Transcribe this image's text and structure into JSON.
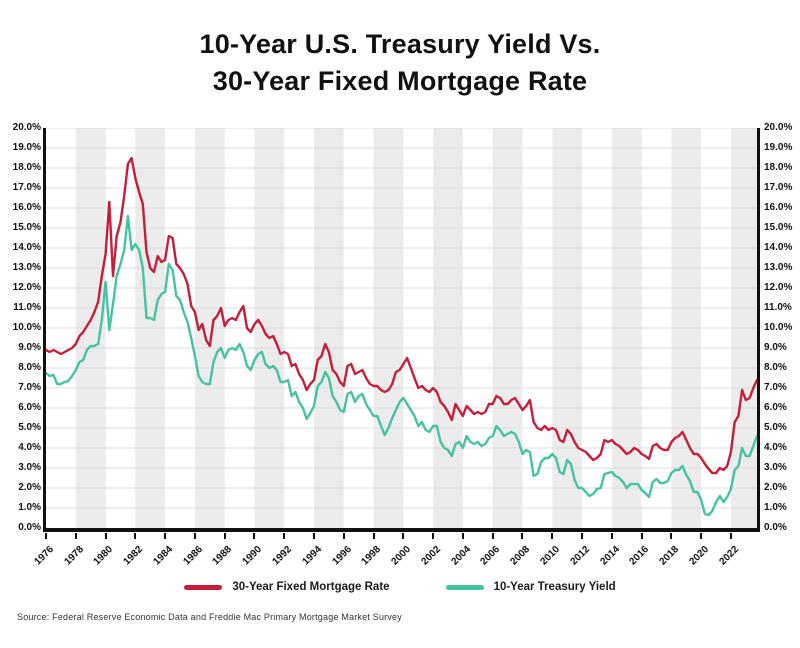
{
  "title": {
    "line1": "10-Year U.S. Treasury Yield Vs.",
    "line2": "30-Year Fixed Mortgage Rate"
  },
  "source": "Source: Federal Reserve Economic Data and Freddie Mac Primary Mortgage Market Survey",
  "chart_data": {
    "type": "line",
    "title": "10-Year U.S. Treasury Yield Vs. 30-Year Fixed Mortgage Rate",
    "xlabel": "",
    "ylabel": "",
    "xlim": [
      1976,
      2023.75
    ],
    "ylim": [
      0,
      20
    ],
    "y_tick_step": 1,
    "y_tick_suffix": "%",
    "y_axis_sides": [
      "left",
      "right"
    ],
    "x_ticks": [
      1976,
      1978,
      1980,
      1982,
      1984,
      1986,
      1988,
      1990,
      1992,
      1994,
      1996,
      1998,
      2000,
      2002,
      2004,
      2006,
      2008,
      2010,
      2012,
      2014,
      2016,
      2018,
      2020,
      2022
    ],
    "x_start": 1976,
    "x_step": 0.25,
    "grid": {
      "horizontal": true,
      "alternating_vertical_bands": true,
      "band_color": "#ececec",
      "gridline_color": "#dcdcdc"
    },
    "legend_position": "bottom",
    "series": [
      {
        "name": "30-Year Fixed Mortgage Rate",
        "color": "#c41e3a",
        "values": [
          8.9,
          8.8,
          8.9,
          8.8,
          8.7,
          8.8,
          8.9,
          9.0,
          9.2,
          9.6,
          9.8,
          10.1,
          10.4,
          10.8,
          11.3,
          12.6,
          13.7,
          16.3,
          12.6,
          14.6,
          15.3,
          16.6,
          18.2,
          18.5,
          17.5,
          16.8,
          16.2,
          13.8,
          13.0,
          12.8,
          13.6,
          13.3,
          13.4,
          14.6,
          14.5,
          13.2,
          13.0,
          12.7,
          12.2,
          11.1,
          10.8,
          9.9,
          10.2,
          9.4,
          9.1,
          10.4,
          10.6,
          11.0,
          10.1,
          10.4,
          10.5,
          10.4,
          10.8,
          11.1,
          10.0,
          9.8,
          10.2,
          10.4,
          10.1,
          9.7,
          9.5,
          9.6,
          9.2,
          8.7,
          8.8,
          8.7,
          8.1,
          8.2,
          7.7,
          7.4,
          6.9,
          7.2,
          7.4,
          8.4,
          8.6,
          9.2,
          8.8,
          7.9,
          7.7,
          7.3,
          7.1,
          8.1,
          8.2,
          7.7,
          7.8,
          7.9,
          7.5,
          7.2,
          7.1,
          7.1,
          6.9,
          6.8,
          6.9,
          7.2,
          7.8,
          7.9,
          8.2,
          8.5,
          8.0,
          7.5,
          7.0,
          7.1,
          6.9,
          6.8,
          7.0,
          6.8,
          6.3,
          6.1,
          5.8,
          5.4,
          6.2,
          5.9,
          5.6,
          6.1,
          5.9,
          5.7,
          5.8,
          5.7,
          5.8,
          6.2,
          6.2,
          6.6,
          6.5,
          6.2,
          6.2,
          6.4,
          6.5,
          6.2,
          5.9,
          6.1,
          6.4,
          5.3,
          5.0,
          4.9,
          5.1,
          4.9,
          5.0,
          4.9,
          4.4,
          4.3,
          4.9,
          4.7,
          4.3,
          4.0,
          3.9,
          3.8,
          3.6,
          3.4,
          3.5,
          3.7,
          4.4,
          4.3,
          4.4,
          4.2,
          4.1,
          3.9,
          3.7,
          3.8,
          4.0,
          3.9,
          3.7,
          3.6,
          3.45,
          4.1,
          4.2,
          4.0,
          3.9,
          3.9,
          4.3,
          4.5,
          4.6,
          4.8,
          4.4,
          4.0,
          3.7,
          3.7,
          3.5,
          3.2,
          2.95,
          2.75,
          2.75,
          3.0,
          2.9,
          3.1,
          3.8,
          5.3,
          5.6,
          6.9,
          6.4,
          6.5,
          7.0,
          7.4
        ]
      },
      {
        "name": "10-Year Treasury Yield",
        "color": "#45c2a0",
        "values": [
          7.75,
          7.6,
          7.65,
          7.2,
          7.2,
          7.3,
          7.35,
          7.6,
          7.9,
          8.3,
          8.4,
          8.9,
          9.1,
          9.1,
          9.2,
          10.4,
          12.3,
          9.9,
          11.2,
          12.6,
          13.2,
          13.9,
          15.6,
          13.9,
          14.2,
          13.9,
          13.0,
          10.5,
          10.5,
          10.4,
          11.4,
          11.7,
          11.8,
          13.2,
          12.9,
          11.6,
          11.4,
          10.8,
          10.3,
          9.5,
          8.6,
          7.6,
          7.3,
          7.2,
          7.2,
          8.3,
          8.8,
          9.0,
          8.5,
          8.9,
          9.0,
          8.9,
          9.2,
          8.8,
          8.1,
          7.9,
          8.4,
          8.7,
          8.8,
          8.2,
          8.0,
          8.1,
          7.9,
          7.3,
          7.3,
          7.4,
          6.6,
          6.8,
          6.3,
          6.0,
          5.45,
          5.75,
          6.1,
          7.1,
          7.3,
          7.8,
          7.5,
          6.6,
          6.3,
          5.9,
          5.8,
          6.7,
          6.8,
          6.3,
          6.6,
          6.7,
          6.2,
          5.9,
          5.6,
          5.6,
          5.1,
          4.65,
          5.0,
          5.5,
          5.9,
          6.3,
          6.5,
          6.2,
          5.9,
          5.6,
          5.1,
          5.3,
          4.9,
          4.8,
          5.1,
          5.1,
          4.3,
          4.0,
          3.9,
          3.6,
          4.2,
          4.3,
          4.0,
          4.6,
          4.3,
          4.2,
          4.3,
          4.1,
          4.2,
          4.5,
          4.6,
          5.1,
          4.9,
          4.6,
          4.7,
          4.8,
          4.7,
          4.3,
          3.7,
          3.9,
          3.8,
          2.6,
          2.7,
          3.3,
          3.5,
          3.5,
          3.7,
          3.5,
          2.8,
          2.7,
          3.4,
          3.2,
          2.4,
          2.0,
          2.0,
          1.8,
          1.6,
          1.7,
          1.95,
          2.0,
          2.7,
          2.75,
          2.8,
          2.6,
          2.5,
          2.3,
          2.0,
          2.2,
          2.2,
          2.2,
          1.9,
          1.75,
          1.55,
          2.3,
          2.45,
          2.25,
          2.25,
          2.35,
          2.75,
          2.9,
          2.9,
          3.1,
          2.65,
          2.35,
          1.8,
          1.8,
          1.4,
          0.7,
          0.65,
          0.85,
          1.3,
          1.6,
          1.3,
          1.55,
          1.95,
          2.9,
          3.1,
          4.0,
          3.6,
          3.6,
          4.1,
          4.6
        ]
      }
    ]
  }
}
